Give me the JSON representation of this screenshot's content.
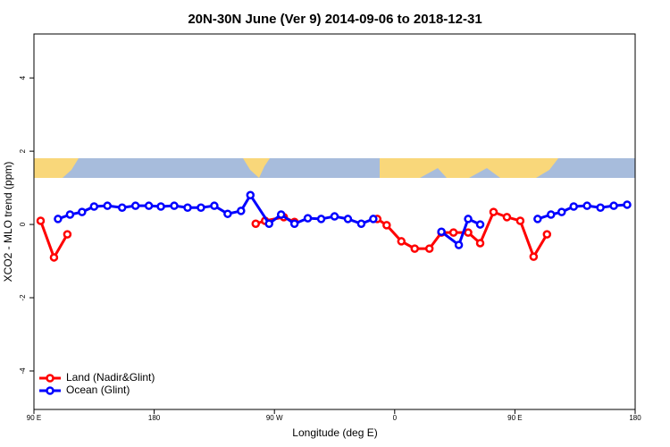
{
  "chart_data": {
    "type": "line",
    "title": "20N-30N June (Ver 9)   2014-09-06 to 2018-12-31",
    "x_label": "Longitude (deg E)",
    "y_label": "XCO2 - MLO trend (ppm)",
    "xlim": [
      90,
      540
    ],
    "ylim": [
      -5.05,
      5.2
    ],
    "xticks": [
      {
        "value": 90,
        "label": "90 E"
      },
      180,
      {
        "value": 270,
        "label": "90 W"
      },
      {
        "value": 360,
        "label": "0"
      },
      {
        "value": 450,
        "label": "90 E"
      },
      {
        "value": 540,
        "label": "180"
      }
    ],
    "yticks": [
      -4,
      -2,
      0,
      2,
      4
    ],
    "legend": "bottom-left",
    "series": [
      {
        "name": "Land (Nadir&Glint)",
        "color": "#ff0000",
        "x": [
          95,
          105,
          115,
          null,
          256,
          263,
          277,
          285,
          null,
          347,
          354,
          365,
          375,
          386,
          395,
          404,
          415,
          424,
          434,
          444,
          454,
          464,
          474
        ],
        "values": [
          0.1,
          -0.9,
          -0.27,
          null,
          0.02,
          0.1,
          0.2,
          0.07,
          null,
          0.15,
          -0.02,
          -0.46,
          -0.66,
          -0.66,
          -0.22,
          -0.22,
          -0.22,
          -0.51,
          0.34,
          0.2,
          0.1,
          -0.88,
          -0.27
        ]
      },
      {
        "name": "Ocean (Glint)",
        "color": "#0000ff",
        "x": [
          108,
          117,
          126,
          135,
          145,
          156,
          166,
          176,
          185,
          195,
          205,
          215,
          225,
          235,
          245,
          252,
          266,
          275,
          285,
          295,
          305,
          315,
          325,
          335,
          344,
          null,
          395,
          408,
          415,
          424,
          null,
          467,
          477,
          485,
          494,
          504,
          514,
          524,
          534
        ],
        "values": [
          0.15,
          0.27,
          0.34,
          0.49,
          0.51,
          0.46,
          0.51,
          0.51,
          0.49,
          0.51,
          0.46,
          0.46,
          0.51,
          0.29,
          0.37,
          0.8,
          0.02,
          0.27,
          0.02,
          0.17,
          0.15,
          0.22,
          0.15,
          0.02,
          0.15,
          null,
          -0.2,
          -0.56,
          0.15,
          0,
          null,
          0.15,
          0.27,
          0.34,
          0.49,
          0.51,
          0.46,
          0.51,
          0.54
        ]
      }
    ]
  }
}
